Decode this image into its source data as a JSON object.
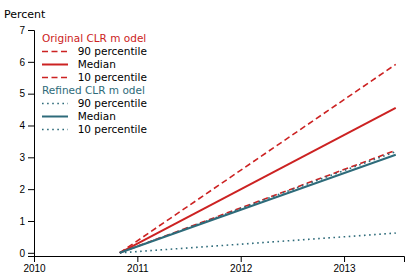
{
  "chart_data": {
    "type": "line",
    "ylabel": "Percent",
    "x": [
      2010.83,
      2013.5
    ],
    "xlim": [
      2010.0,
      2013.58
    ],
    "ylim": [
      -0.1,
      7
    ],
    "xticks": [
      2010,
      2011,
      2012,
      2013
    ],
    "yticks": [
      0,
      1,
      2,
      3,
      4,
      5,
      6,
      7
    ],
    "legend": "upper left",
    "legend_groups": [
      {
        "title": "Original CLR m odel",
        "color": "#cc2222"
      },
      {
        "title": "Refined CLR m odel",
        "color": "#2e6b7a"
      }
    ],
    "series": [
      {
        "name": "  90 percentile",
        "color": "#cc2222",
        "line_style": "dashed",
        "values": [
          0.0,
          5.92
        ]
      },
      {
        "name": "  Median",
        "color": "#cc2222",
        "line_style": "solid",
        "values": [
          0.0,
          4.55
        ]
      },
      {
        "name": "  10 percentile",
        "color": "#cc2222",
        "line_style": "dashed",
        "values": [
          0.0,
          3.22
        ]
      },
      {
        "name": "  90 percentile",
        "color": "#2e6b7a",
        "line_style": "dotted",
        "values": [
          0.0,
          3.18
        ]
      },
      {
        "name": "  Median",
        "color": "#2e6b7a",
        "line_style": "solid",
        "values": [
          0.0,
          3.08
        ]
      },
      {
        "name": "  10 percentile",
        "color": "#2e6b7a",
        "line_style": "dotted",
        "values": [
          0.0,
          0.62
        ]
      }
    ]
  }
}
